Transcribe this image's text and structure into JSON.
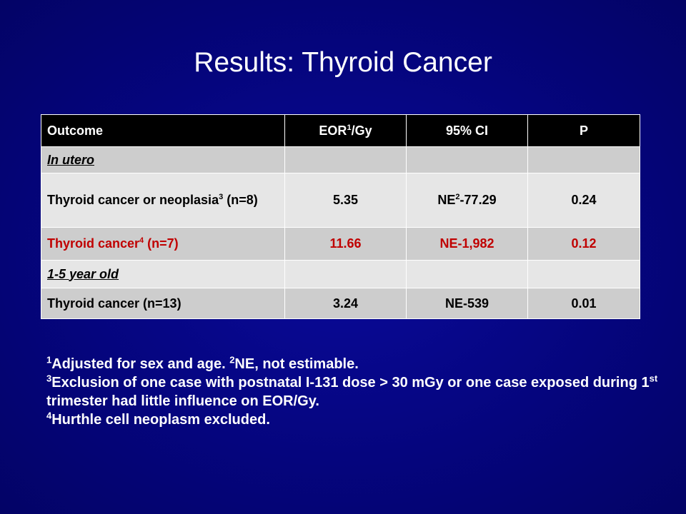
{
  "title": "Results: Thyroid Cancer",
  "table": {
    "headers": {
      "outcome": "Outcome",
      "eor_base": "EOR",
      "eor_sup": "1",
      "eor_unit": "/Gy",
      "ci": "95% CI",
      "p": "P"
    },
    "rows": {
      "in_utero": {
        "label": "In utero"
      },
      "thyroid_neoplasia": {
        "label_a": "Thyroid cancer or neoplasia",
        "label_sup": "3",
        "label_b": " (n=8)",
        "eor": "5.35",
        "ci_a": "NE",
        "ci_sup": "2",
        "ci_b": "-77.29",
        "p": "0.24"
      },
      "thyroid_cancer": {
        "label_a": "Thyroid cancer",
        "label_sup": "4",
        "label_b": " (n=7)",
        "eor": "11.66",
        "ci": "NE-1,982",
        "p": "0.12"
      },
      "one_five": {
        "label": "1-5 year old"
      },
      "thyroid_cancer_13": {
        "label": "Thyroid cancer (n=13)",
        "eor": "3.24",
        "ci": "NE-539",
        "p": "0.01"
      }
    },
    "colors": {
      "header_bg": "#000000",
      "row_dark": "#cdcdcd",
      "row_light": "#e6e6e6",
      "highlight_text": "#c00000"
    }
  },
  "footnotes": {
    "f1_sup": "1",
    "f1_text": "Adjusted for sex and age. ",
    "f2_sup": "2",
    "f2_text": "NE, not estimable.",
    "f3_sup": "3",
    "f3_text_a": "Exclusion of one case with postnatal I-131 dose > 30 mGy or one case exposed during 1",
    "f3_sup_b": "st",
    "f3_text_b": " trimester had little influence on EOR/Gy.",
    "f4_sup": "4",
    "f4_text": "Hurthle cell neoplasm excluded."
  },
  "background_color": "#05057e"
}
